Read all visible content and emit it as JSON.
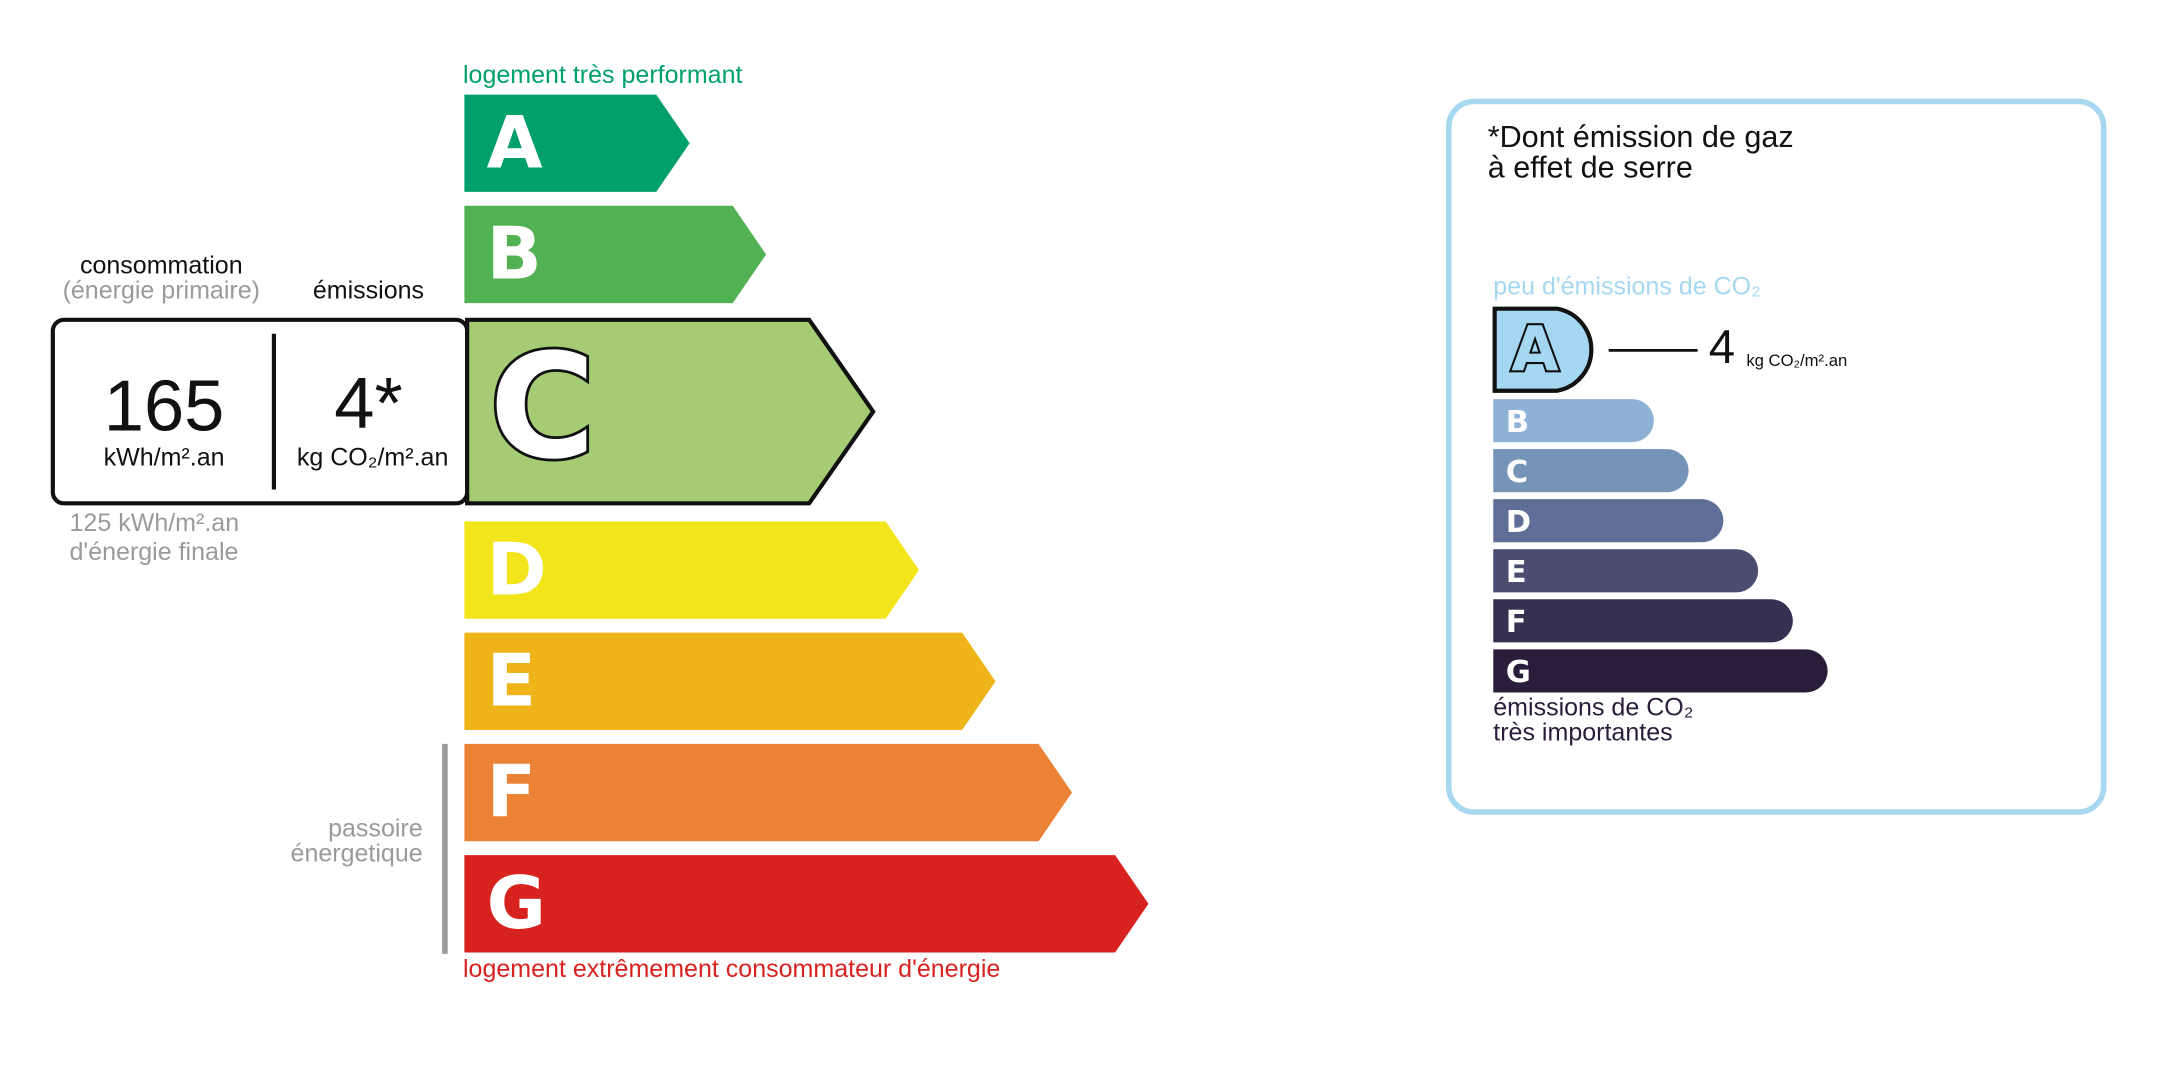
{
  "energy": {
    "top_label": "logement très performant",
    "bottom_label": "logement extrêmement consommateur d'énergie",
    "rating": "C",
    "classes": [
      {
        "letter": "A",
        "color": "#00a06d"
      },
      {
        "letter": "B",
        "color": "#52b153"
      },
      {
        "letter": "C",
        "color": "#a5cc74"
      },
      {
        "letter": "D",
        "color": "#f2e51b"
      },
      {
        "letter": "E",
        "color": "#efb41a"
      },
      {
        "letter": "F",
        "color": "#eb8235"
      },
      {
        "letter": "G",
        "color": "#d7221f"
      }
    ],
    "consumption_header": "consommation",
    "consumption_subheader": "(énergie primaire)",
    "emissions_header": "émissions",
    "consumption_value": "165",
    "consumption_unit": "kWh/m².an",
    "emissions_value": "4*",
    "emissions_unit": "kg CO₂/m².an",
    "final_energy": "125 kWh/m².an",
    "final_energy_label": "d'énergie finale",
    "passoire_lines": [
      "passoire",
      "énergetique"
    ]
  },
  "ghg": {
    "title_lines": [
      "*Dont émission de gaz",
      "à effet de serre"
    ],
    "top_label": "peu d'émissions de CO₂",
    "rating": "A",
    "value": "4",
    "unit": "kg CO₂/m².an",
    "classes": [
      {
        "letter": "A",
        "color": "#a4d8f2"
      },
      {
        "letter": "B",
        "color": "#8db2d5"
      },
      {
        "letter": "C",
        "color": "#7594b8"
      },
      {
        "letter": "D",
        "color": "#5f6e97"
      },
      {
        "letter": "E",
        "color": "#4a4d70"
      },
      {
        "letter": "F",
        "color": "#353150"
      },
      {
        "letter": "G",
        "color": "#2a1d3b"
      }
    ],
    "bottom_label_lines": [
      "émissions de CO₂",
      "très importantes"
    ]
  }
}
